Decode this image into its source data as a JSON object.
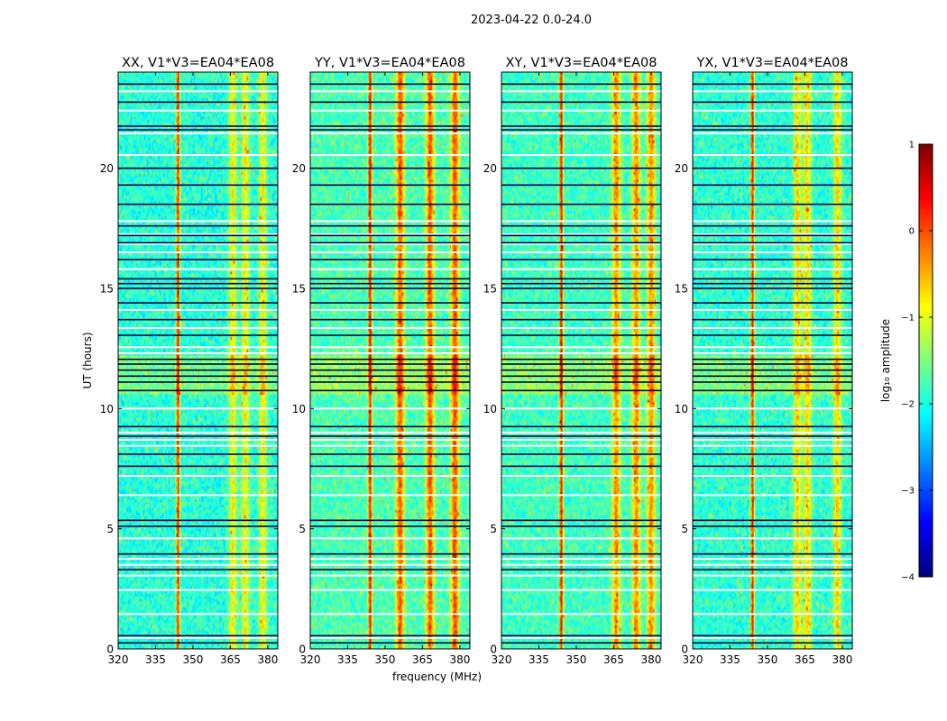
{
  "suptitle": "2023-04-22 0.0-24.0",
  "chart_data": [
    {
      "type": "heatmap",
      "title": "XX, V1*V3=EA04*EA08",
      "xlabel": "",
      "ylabel": "UT (hours)",
      "x_ticks": [
        "320",
        "335",
        "350",
        "365",
        "380"
      ],
      "y_ticks": [
        "0",
        "5",
        "10",
        "15",
        "20"
      ],
      "xlim": [
        320,
        384
      ],
      "ylim": [
        0,
        24
      ],
      "bright_bands_mhz": [
        344,
        366,
        371,
        378
      ],
      "band_strength": 1.0
    },
    {
      "type": "heatmap",
      "title": "YY, V1*V3=EA04*EA08",
      "xlabel": "frequency (MHz)",
      "ylabel": "",
      "x_ticks": [
        "320",
        "335",
        "350",
        "365",
        "380"
      ],
      "y_ticks": [
        "0",
        "5",
        "10",
        "15",
        "20"
      ],
      "xlim": [
        320,
        384
      ],
      "ylim": [
        0,
        24
      ],
      "bright_bands_mhz": [
        344,
        356,
        368,
        378
      ],
      "band_strength": 1.6
    },
    {
      "type": "heatmap",
      "title": "XY, V1*V3=EA04*EA08",
      "xlabel": "",
      "ylabel": "",
      "x_ticks": [
        "320",
        "335",
        "350",
        "365",
        "380"
      ],
      "y_ticks": [
        "0",
        "5",
        "10",
        "15",
        "20"
      ],
      "xlim": [
        320,
        384
      ],
      "ylim": [
        0,
        24
      ],
      "bright_bands_mhz": [
        344,
        366,
        374,
        380
      ],
      "band_strength": 1.4
    },
    {
      "type": "heatmap",
      "title": "YX, V1*V3=EA04*EA08",
      "xlabel": "",
      "ylabel": "",
      "x_ticks": [
        "320",
        "335",
        "350",
        "365",
        "380"
      ],
      "y_ticks": [
        "0",
        "5",
        "10",
        "15",
        "20"
      ],
      "xlim": [
        320,
        384
      ],
      "ylim": [
        0,
        24
      ],
      "bright_bands_mhz": [
        344,
        362,
        366,
        378
      ],
      "band_strength": 1.1
    }
  ],
  "colorbar": {
    "label": "log₁₀ amplitude",
    "ticks": [
      "1",
      "0",
      "−1",
      "−2",
      "−3",
      "−4"
    ],
    "range": [
      -4,
      1
    ],
    "colormap": "jet"
  },
  "flag_rows_hours": {
    "white": [
      0.45,
      1.45,
      2.45,
      3.05,
      3.5,
      3.75,
      4.6,
      6.4,
      7.2,
      8.45,
      8.7,
      9.0,
      10.0,
      12.3,
      12.55,
      13.35,
      14.1,
      15.8,
      16.5,
      16.85,
      17.25,
      17.8,
      20.55,
      21.45,
      22.4,
      23.2
    ],
    "black": [
      0.25,
      0.55,
      3.3,
      3.95,
      5.1,
      5.35,
      7.6,
      8.1,
      8.85,
      9.25,
      10.75,
      11.1,
      11.35,
      11.6,
      11.85,
      12.05,
      13.05,
      13.7,
      14.4,
      15.0,
      15.2,
      15.4,
      16.2,
      16.9,
      17.2,
      17.6,
      18.5,
      19.3,
      20.0,
      21.6,
      21.75,
      22.75,
      23.5
    ]
  }
}
